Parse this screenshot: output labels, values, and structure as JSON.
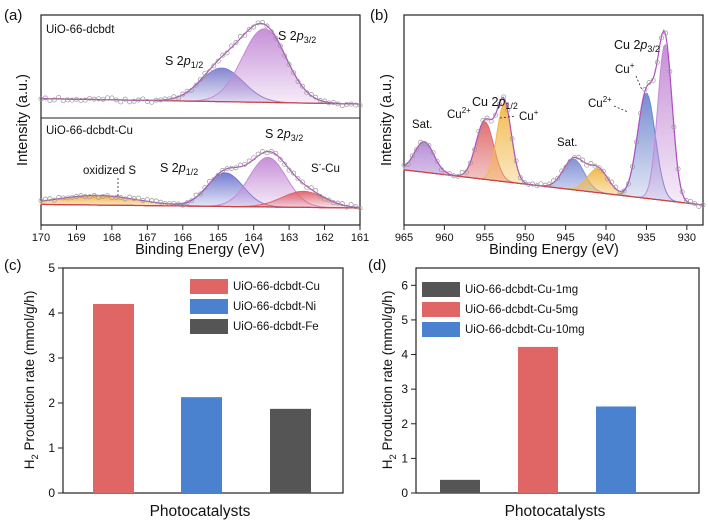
{
  "chart_data": [
    {
      "type": "line",
      "panel_label": "(a)",
      "xlabel": "Binding Energy (eV)",
      "ylabel": "Intensity (a.u.)",
      "xlim": [
        170,
        161
      ],
      "x_ticks": [
        "170",
        "169",
        "168",
        "167",
        "166",
        "165",
        "164",
        "163",
        "162",
        "161"
      ],
      "subplots": [
        {
          "title": "UiO-66-dcbdt",
          "peaks": [
            {
              "name": "S 2p1/2",
              "label_main": "S 2",
              "label_p": "p",
              "label_sub": "1/2",
              "center": 164.9,
              "width": 0.6,
              "height": 0.42,
              "color": "#7f7fcf"
            },
            {
              "name": "S 2p3/2",
              "label_main": "S 2",
              "label_p": "p",
              "label_sub": "3/2",
              "center": 163.7,
              "width": 0.62,
              "height": 0.92,
              "color": "#c48ad6"
            }
          ]
        },
        {
          "title": "UiO-66-dcbdt-Cu",
          "peaks": [
            {
              "name": "oxidized S",
              "label_main": "oxidized S",
              "center": 168.4,
              "width": 1.1,
              "height": 0.12,
              "color": "#f0b040"
            },
            {
              "name": "S 2p1/2",
              "label_main": "S 2",
              "label_p": "p",
              "label_sub": "1/2",
              "center": 164.8,
              "width": 0.5,
              "height": 0.42,
              "color": "#6f76d0"
            },
            {
              "name": "S 2p3/2",
              "label_main": "S 2",
              "label_p": "p",
              "label_sub": "3/2",
              "center": 163.6,
              "width": 0.52,
              "height": 0.62,
              "color": "#c48ad6"
            },
            {
              "name": "S--Cu",
              "label_main": "S",
              "label_sup": "-",
              "label_rest": "-Cu",
              "center": 162.6,
              "width": 0.6,
              "height": 0.2,
              "color": "#e0606a"
            }
          ]
        }
      ]
    },
    {
      "type": "line",
      "panel_label": "(b)",
      "xlabel": "Binding Energy (eV)",
      "ylabel": "Intensity (a.u.)",
      "xlim": [
        965,
        928
      ],
      "x_ticks": [
        "965",
        "960",
        "955",
        "950",
        "945",
        "940",
        "935",
        "930"
      ],
      "peaks": [
        {
          "name": "Sat.",
          "center": 962.5,
          "width": 1.2,
          "height": 0.18,
          "color": "#b48ad6"
        },
        {
          "name": "Cu2+ 2p1/2",
          "center": 955.0,
          "width": 1.1,
          "height": 0.34,
          "color": "#e06a6a"
        },
        {
          "name": "Cu+ 2p1/2",
          "center": 952.6,
          "width": 0.9,
          "height": 0.46,
          "color": "#f2b84a"
        },
        {
          "name": "Sat.",
          "center": 944.0,
          "width": 1.3,
          "height": 0.18,
          "color": "#7f8fd6"
        },
        {
          "name": "Sat.",
          "center": 941.0,
          "width": 1.3,
          "height": 0.14,
          "color": "#f2b84a"
        },
        {
          "name": "Cu2+ 2p3/2",
          "center": 935.0,
          "width": 1.1,
          "height": 0.62,
          "color": "#6f86d0"
        },
        {
          "name": "Cu+ 2p3/2",
          "center": 932.7,
          "width": 0.9,
          "height": 0.92,
          "color": "#c48ad6"
        }
      ],
      "annotations": {
        "sat1": "Sat.",
        "sat2": "Sat.",
        "cu2_left": "Cu",
        "cu2_left_sup": "2+",
        "cu_left": "Cu",
        "cu_left_sup": "+",
        "cu2p12_main": "Cu 2",
        "cu2p12_p": "p",
        "cu2p12_sub": "1/2",
        "cu2_right": "Cu",
        "cu2_right_sup": "2+",
        "cu_right": "Cu",
        "cu_right_sup": "+",
        "cu2p32_main": "Cu 2",
        "cu2p32_p": "p",
        "cu2p32_sub": "3/2"
      }
    },
    {
      "type": "bar",
      "panel_label": "(c)",
      "xlabel": "Photocatalysts",
      "ylabel_main": "H",
      "ylabel_sub": "2",
      "ylabel_rest": " Production rate (mmol/g/h)",
      "ylim": [
        0,
        5
      ],
      "y_ticks": [
        "0",
        "1",
        "2",
        "3",
        "4",
        "5"
      ],
      "categories": [
        "UiO-66-dcbdt-Cu",
        "UiO-66-dcbdt-Ni",
        "UiO-66-dcbdt-Fe"
      ],
      "values": [
        4.2,
        2.13,
        1.87
      ],
      "colors": [
        "#e06666",
        "#4a82d0",
        "#555555"
      ]
    },
    {
      "type": "bar",
      "panel_label": "(d)",
      "xlabel": "Photocatalysts",
      "ylabel_main": "H",
      "ylabel_sub": "2",
      "ylabel_rest": " Production rate (mmol/g/h)",
      "ylim": [
        0,
        6.5
      ],
      "y_ticks": [
        "0",
        "1",
        "2",
        "3",
        "4",
        "5",
        "6"
      ],
      "categories": [
        "UiO-66-dcbdt-Cu-1mg",
        "UiO-66-dcbdt-Cu-5mg",
        "UiO-66-dcbdt-Cu-10mg"
      ],
      "values": [
        0.38,
        4.22,
        2.5
      ],
      "colors": [
        "#555555",
        "#e06666",
        "#4a82d0"
      ]
    }
  ]
}
